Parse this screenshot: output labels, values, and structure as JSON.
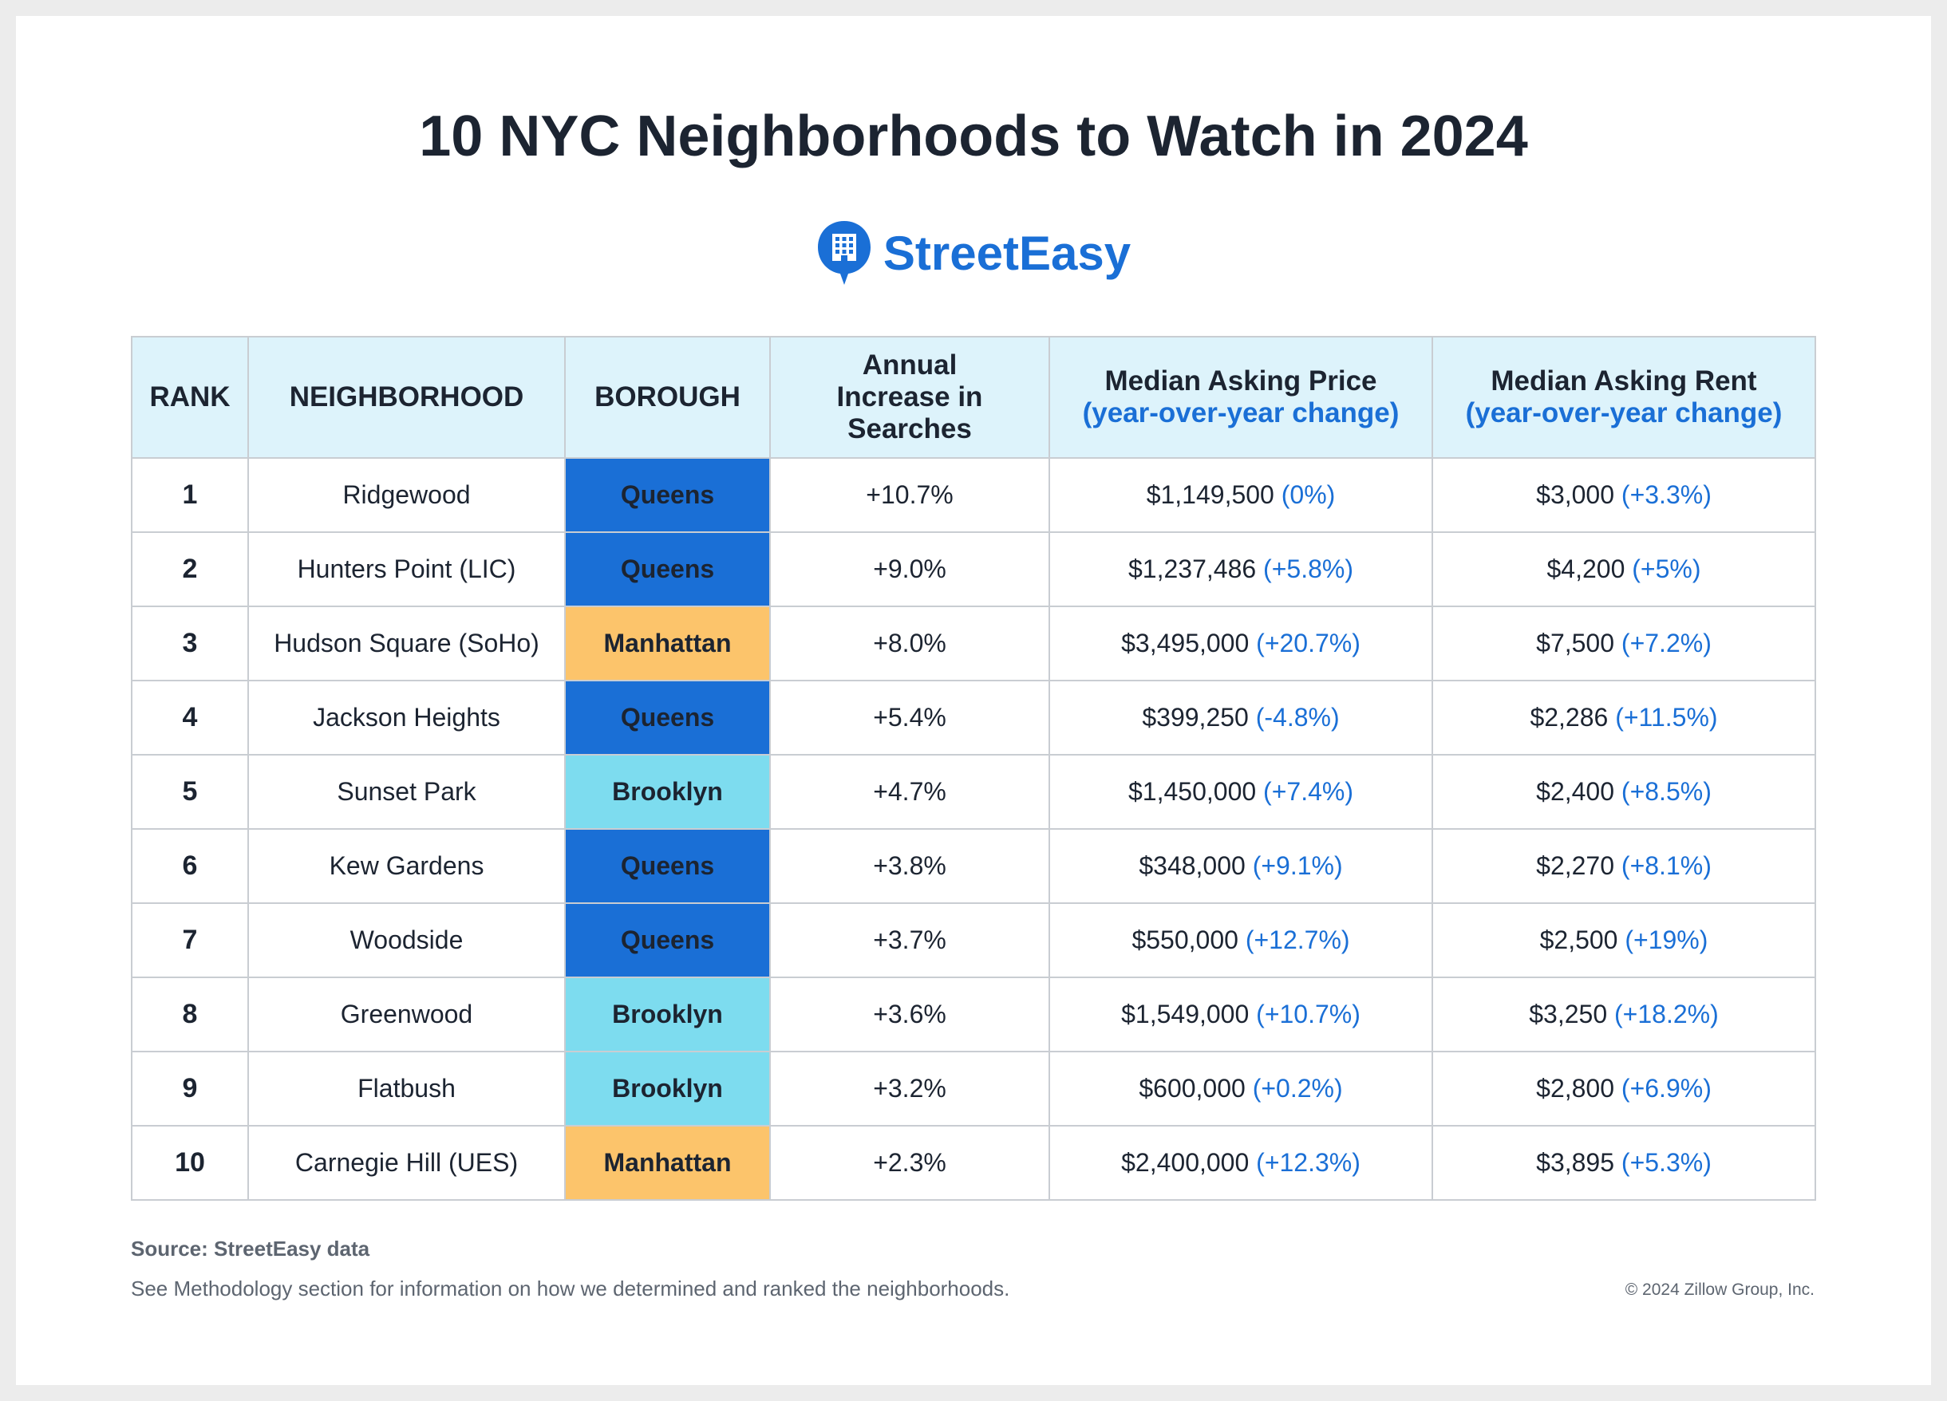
{
  "title": "10 NYC Neighborhoods to Watch in 2024",
  "brand": {
    "name": "StreetEasy",
    "icon": "building-chat-bubble-icon",
    "color": "#1a6fd6"
  },
  "colors": {
    "queens": "#1a6fd6",
    "manhattan": "#fcc46b",
    "brooklyn": "#7ddcef",
    "header_bg": "#ddf3fb",
    "change_text": "#1a6fd6"
  },
  "chart_data": {
    "type": "table",
    "columns": [
      {
        "label": "RANK"
      },
      {
        "label": "NEIGHBORHOOD"
      },
      {
        "label": "BOROUGH"
      },
      {
        "label": "Annual Increase in Searches"
      },
      {
        "label": "Median Asking Price",
        "sub": "(year-over-year change)"
      },
      {
        "label": "Median Asking Rent",
        "sub": "(year-over-year change)"
      }
    ],
    "rows": [
      {
        "rank": "1",
        "neighborhood": "Ridgewood",
        "borough": "Queens",
        "searches": "+10.7%",
        "price": "$1,149,500",
        "price_change": "(0%)",
        "rent": "$3,000",
        "rent_change": "(+3.3%)"
      },
      {
        "rank": "2",
        "neighborhood": "Hunters Point (LIC)",
        "borough": "Queens",
        "searches": "+9.0%",
        "price": "$1,237,486",
        "price_change": "(+5.8%)",
        "rent": "$4,200",
        "rent_change": "(+5%)"
      },
      {
        "rank": "3",
        "neighborhood": "Hudson Square (SoHo)",
        "borough": "Manhattan",
        "searches": "+8.0%",
        "price": "$3,495,000",
        "price_change": "(+20.7%)",
        "rent": "$7,500",
        "rent_change": "(+7.2%)"
      },
      {
        "rank": "4",
        "neighborhood": "Jackson Heights",
        "borough": "Queens",
        "searches": "+5.4%",
        "price": "$399,250",
        "price_change": "(-4.8%)",
        "rent": "$2,286",
        "rent_change": "(+11.5%)"
      },
      {
        "rank": "5",
        "neighborhood": "Sunset Park",
        "borough": "Brooklyn",
        "searches": "+4.7%",
        "price": "$1,450,000",
        "price_change": "(+7.4%)",
        "rent": "$2,400",
        "rent_change": "(+8.5%)"
      },
      {
        "rank": "6",
        "neighborhood": "Kew Gardens",
        "borough": "Queens",
        "searches": "+3.8%",
        "price": "$348,000",
        "price_change": "(+9.1%)",
        "rent": "$2,270",
        "rent_change": "(+8.1%)"
      },
      {
        "rank": "7",
        "neighborhood": "Woodside",
        "borough": "Queens",
        "searches": "+3.7%",
        "price": "$550,000",
        "price_change": "(+12.7%)",
        "rent": "$2,500",
        "rent_change": "(+19%)"
      },
      {
        "rank": "8",
        "neighborhood": "Greenwood",
        "borough": "Brooklyn",
        "searches": "+3.6%",
        "price": "$1,549,000",
        "price_change": "(+10.7%)",
        "rent": "$3,250",
        "rent_change": "(+18.2%)"
      },
      {
        "rank": "9",
        "neighborhood": "Flatbush",
        "borough": "Brooklyn",
        "searches": "+3.2%",
        "price": "$600,000",
        "price_change": "(+0.2%)",
        "rent": "$2,800",
        "rent_change": "(+6.9%)"
      },
      {
        "rank": "10",
        "neighborhood": "Carnegie Hill (UES)",
        "borough": "Manhattan",
        "searches": "+2.3%",
        "price": "$2,400,000",
        "price_change": "(+12.3%)",
        "rent": "$3,895",
        "rent_change": "(+5.3%)"
      }
    ]
  },
  "footer": {
    "source": "Source: StreetEasy data",
    "note": "See Methodology section for information on how we determined and ranked the neighborhoods.",
    "copyright": "© 2024 Zillow Group, Inc."
  }
}
